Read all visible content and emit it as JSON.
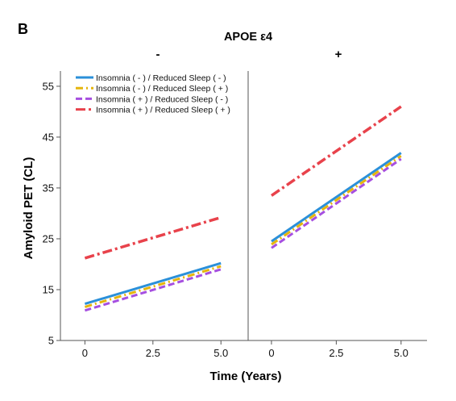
{
  "panel_label": "B",
  "facet_title": "APOE ε4",
  "chart_data": {
    "type": "line",
    "ylabel": "Amyloid PET (CL)",
    "xlabel": "Time (Years)",
    "ylim": [
      5,
      58
    ],
    "yticks": [
      5,
      15,
      25,
      35,
      45,
      55
    ],
    "xlim": [
      -0.9,
      6.0
    ],
    "xticks": [
      0,
      2.5,
      5.0
    ],
    "xtick_labels": [
      "0",
      "2.5",
      "5.0"
    ],
    "legend_position": "top-left of left panel",
    "grid": false,
    "series_styles": [
      {
        "color": "#2b90d9",
        "dash": "",
        "width": 3
      },
      {
        "color": "#e5b50d",
        "dash": "9,4,2,4",
        "width": 3
      },
      {
        "color": "#a64fe0",
        "dash": "8,4",
        "width": 3
      },
      {
        "color": "#e8424b",
        "dash": "12,4,3,4",
        "width": 3.5
      }
    ],
    "panels": [
      {
        "title": "-",
        "series": [
          {
            "name": "Insomnia ( - ) / Reduced Sleep ( - )",
            "x": [
              0,
              5
            ],
            "y": [
              12.2,
              20.2
            ]
          },
          {
            "name": "Insomnia ( - ) / Reduced Sleep ( + )",
            "x": [
              0,
              5
            ],
            "y": [
              11.6,
              19.6
            ]
          },
          {
            "name": "Insomnia ( + ) / Reduced Sleep ( - )",
            "x": [
              0,
              5
            ],
            "y": [
              10.9,
              19.0
            ]
          },
          {
            "name": "Insomnia ( + ) / Reduced Sleep ( + )",
            "x": [
              0,
              5
            ],
            "y": [
              21.2,
              29.2
            ]
          }
        ]
      },
      {
        "title": "+",
        "series": [
          {
            "name": "Insomnia ( - ) / Reduced Sleep ( - )",
            "x": [
              0,
              5
            ],
            "y": [
              24.5,
              41.9
            ]
          },
          {
            "name": "Insomnia ( - ) / Reduced Sleep ( + )",
            "x": [
              0,
              5
            ],
            "y": [
              23.9,
              41.3
            ]
          },
          {
            "name": "Insomnia ( + ) / Reduced Sleep ( - )",
            "x": [
              0,
              5
            ],
            "y": [
              23.2,
              40.7
            ]
          },
          {
            "name": "Insomnia ( + ) / Reduced Sleep ( + )",
            "x": [
              0,
              5
            ],
            "y": [
              33.5,
              51.0
            ]
          }
        ]
      }
    ]
  }
}
